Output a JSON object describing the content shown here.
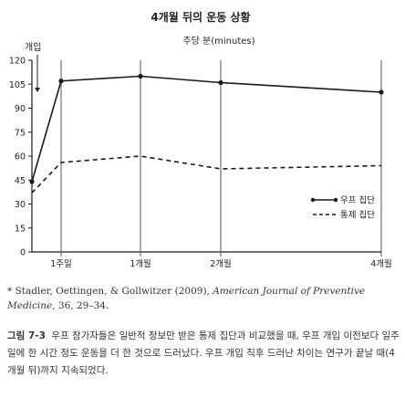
{
  "chart_data": {
    "type": "line",
    "title": "4개월 뒤의 운동 상황",
    "unit_label": "주당 분(minutes)",
    "annotation": "개입",
    "x": [
      "0",
      "1주일",
      "1개월",
      "2개월",
      "4개월"
    ],
    "x_tick_labels": [
      "1주일",
      "1개월",
      "2개월",
      "4개월"
    ],
    "y_ticks": [
      0,
      15,
      30,
      45,
      60,
      75,
      90,
      105,
      120
    ],
    "ylim": [
      0,
      120
    ],
    "grid": "vertical",
    "legend_position": "right",
    "series": [
      {
        "name": "우프 집단",
        "style": "solid",
        "values": [
          44,
          107,
          110,
          106,
          100
        ]
      },
      {
        "name": "통제 집단",
        "style": "dashed",
        "values": [
          37,
          56,
          60,
          52,
          54
        ]
      }
    ]
  },
  "footnote": {
    "marker": "*",
    "authors": "Stadler, Oettingen, & Gollwitzer (2009),",
    "journal": "American Journal of Preventive Medicine",
    "rest": ", 36, 29–34."
  },
  "caption": {
    "label": "그림 7-3",
    "text": "우프 참가자들은 일반적 정보만 받은 통제 집단과 비교했을 때, 우프 개입 이전보다 일주일에 한 시간 정도 운동을 더 한 것으로 드러났다. 우프 개입 직후 드러난 차이는 연구가 끝날 때(4개월 뒤)까지 지속되었다."
  },
  "colors": {
    "line": "#1a1a1a",
    "grid": "#555555",
    "text": "#222222"
  }
}
